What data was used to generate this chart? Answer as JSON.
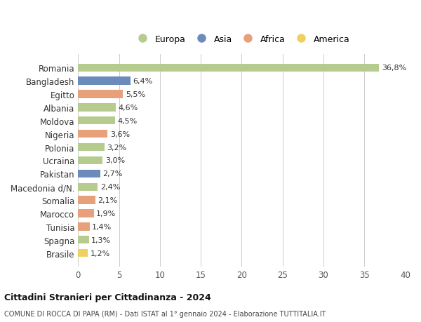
{
  "countries": [
    "Romania",
    "Bangladesh",
    "Egitto",
    "Albania",
    "Moldova",
    "Nigeria",
    "Polonia",
    "Ucraina",
    "Pakistan",
    "Macedonia d/N.",
    "Somalia",
    "Marocco",
    "Tunisia",
    "Spagna",
    "Brasile"
  ],
  "values": [
    36.8,
    6.4,
    5.5,
    4.6,
    4.5,
    3.6,
    3.2,
    3.0,
    2.7,
    2.4,
    2.1,
    1.9,
    1.4,
    1.3,
    1.2
  ],
  "labels": [
    "36,8%",
    "6,4%",
    "5,5%",
    "4,6%",
    "4,5%",
    "3,6%",
    "3,2%",
    "3,0%",
    "2,7%",
    "2,4%",
    "2,1%",
    "1,9%",
    "1,4%",
    "1,3%",
    "1,2%"
  ],
  "continents": [
    "Europa",
    "Asia",
    "Africa",
    "Europa",
    "Europa",
    "Africa",
    "Europa",
    "Europa",
    "Asia",
    "Europa",
    "Africa",
    "Africa",
    "Africa",
    "Europa",
    "America"
  ],
  "continent_colors": {
    "Europa": "#b5cc8e",
    "Asia": "#6b8cba",
    "Africa": "#e8a07a",
    "America": "#f0d060"
  },
  "legend_order": [
    "Europa",
    "Asia",
    "Africa",
    "America"
  ],
  "xlim": [
    0,
    40
  ],
  "xticks": [
    0,
    5,
    10,
    15,
    20,
    25,
    30,
    35,
    40
  ],
  "title1": "Cittadini Stranieri per Cittadinanza - 2024",
  "title2": "COMUNE DI ROCCA DI PAPA (RM) - Dati ISTAT al 1° gennaio 2024 - Elaborazione TUTTITALIA.IT",
  "background_color": "#ffffff",
  "grid_color": "#cccccc"
}
